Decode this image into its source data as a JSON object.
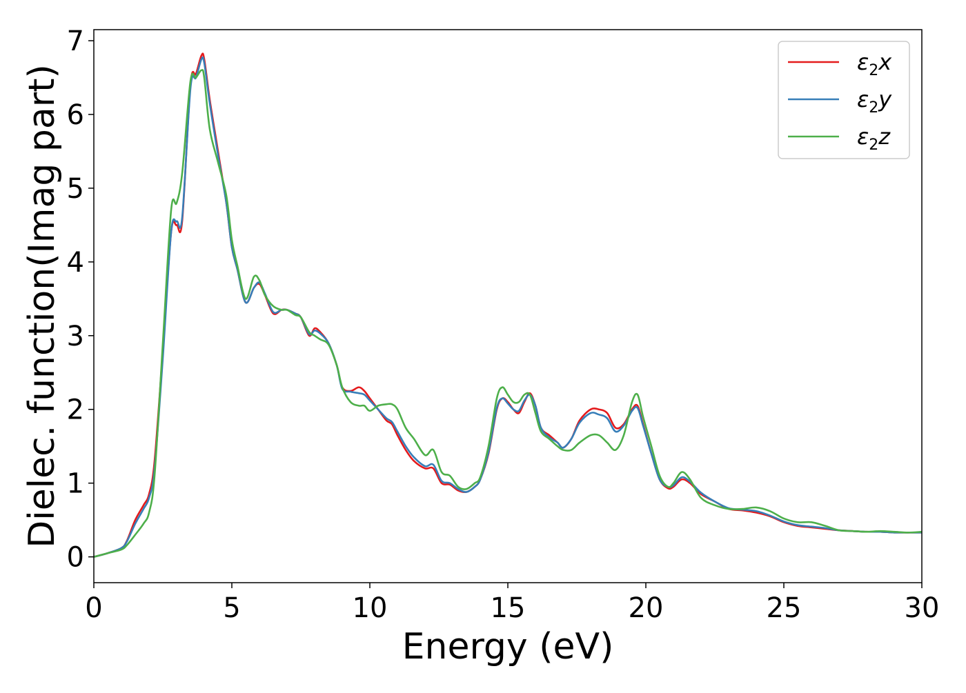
{
  "chart_data": {
    "type": "line",
    "title": "",
    "xlabel": "Energy (eV)",
    "ylabel": "Dielec. function(Imag part)",
    "xlim": [
      0,
      30
    ],
    "ylim": [
      -0.35,
      7.15
    ],
    "xticks": [
      0,
      5,
      10,
      15,
      20,
      25,
      30
    ],
    "yticks": [
      0,
      1,
      2,
      3,
      4,
      5,
      6,
      7
    ],
    "grid": false,
    "legend_position": "top-right",
    "series": [
      {
        "name": "ε₂x",
        "legend": {
          "base": "ε",
          "sub": "2",
          "suffix": "x"
        },
        "color": "#e41a1c",
        "x": [
          0,
          0.5,
          1.0,
          1.2,
          1.5,
          1.8,
          2.0,
          2.2,
          2.5,
          2.8,
          3.0,
          3.2,
          3.5,
          3.7,
          3.9,
          4.0,
          4.2,
          4.5,
          4.8,
          5.0,
          5.2,
          5.5,
          5.8,
          6.0,
          6.2,
          6.5,
          6.8,
          7.0,
          7.3,
          7.5,
          7.8,
          8.0,
          8.2,
          8.5,
          8.8,
          9.0,
          9.3,
          9.6,
          9.8,
          10.0,
          10.3,
          10.6,
          10.8,
          11.0,
          11.3,
          11.6,
          12.0,
          12.3,
          12.6,
          12.9,
          13.2,
          13.5,
          13.8,
          14.0,
          14.3,
          14.6,
          14.8,
          15.0,
          15.2,
          15.4,
          15.6,
          15.8,
          16.0,
          16.2,
          16.5,
          16.8,
          17.0,
          17.3,
          17.6,
          18.0,
          18.3,
          18.6,
          18.9,
          19.2,
          19.5,
          19.7,
          19.9,
          20.2,
          20.5,
          20.8,
          21.0,
          21.3,
          21.6,
          22.0,
          22.5,
          23.0,
          23.5,
          24.0,
          24.5,
          25.0,
          25.5,
          26.0,
          26.5,
          27.0,
          27.5,
          28.0,
          28.5,
          29.0,
          29.5,
          30.0
        ],
        "y": [
          0,
          0.05,
          0.12,
          0.22,
          0.5,
          0.7,
          0.85,
          1.3,
          2.8,
          4.4,
          4.5,
          4.55,
          6.4,
          6.55,
          6.8,
          6.75,
          6.2,
          5.5,
          4.8,
          4.2,
          3.9,
          3.45,
          3.65,
          3.7,
          3.55,
          3.3,
          3.35,
          3.35,
          3.3,
          3.25,
          3.0,
          3.1,
          3.05,
          2.9,
          2.6,
          2.3,
          2.25,
          2.3,
          2.25,
          2.15,
          2.0,
          1.85,
          1.8,
          1.65,
          1.45,
          1.3,
          1.2,
          1.2,
          1.0,
          0.98,
          0.9,
          0.88,
          0.95,
          1.05,
          1.4,
          2.0,
          2.15,
          2.1,
          2.0,
          1.95,
          2.1,
          2.22,
          2.05,
          1.75,
          1.65,
          1.55,
          1.48,
          1.6,
          1.85,
          2.0,
          2.0,
          1.95,
          1.75,
          1.8,
          2.0,
          2.05,
          1.8,
          1.4,
          1.05,
          0.93,
          0.95,
          1.05,
          1.0,
          0.85,
          0.75,
          0.65,
          0.63,
          0.6,
          0.55,
          0.47,
          0.42,
          0.4,
          0.38,
          0.36,
          0.35,
          0.34,
          0.34,
          0.33,
          0.33,
          0.33
        ]
      },
      {
        "name": "ε₂y",
        "legend": {
          "base": "ε",
          "sub": "2",
          "suffix": "y"
        },
        "color": "#377eb8",
        "x": [
          0,
          0.5,
          1.0,
          1.2,
          1.5,
          1.8,
          2.0,
          2.2,
          2.5,
          2.8,
          3.0,
          3.2,
          3.5,
          3.7,
          3.9,
          4.0,
          4.2,
          4.5,
          4.8,
          5.0,
          5.2,
          5.5,
          5.8,
          6.0,
          6.2,
          6.5,
          6.8,
          7.0,
          7.3,
          7.5,
          7.8,
          8.0,
          8.2,
          8.5,
          8.8,
          9.0,
          9.3,
          9.6,
          9.8,
          10.0,
          10.3,
          10.6,
          10.8,
          11.0,
          11.3,
          11.6,
          12.0,
          12.3,
          12.6,
          12.9,
          13.2,
          13.5,
          13.8,
          14.0,
          14.3,
          14.6,
          14.8,
          15.0,
          15.2,
          15.4,
          15.6,
          15.8,
          16.0,
          16.2,
          16.5,
          16.8,
          17.0,
          17.3,
          17.6,
          18.0,
          18.3,
          18.6,
          18.9,
          19.2,
          19.5,
          19.7,
          19.9,
          20.2,
          20.5,
          20.8,
          21.0,
          21.3,
          21.6,
          22.0,
          22.5,
          23.0,
          23.5,
          24.0,
          24.5,
          25.0,
          25.5,
          26.0,
          26.5,
          27.0,
          27.5,
          28.0,
          28.5,
          29.0,
          29.5,
          30.0
        ],
        "y": [
          0,
          0.05,
          0.12,
          0.21,
          0.45,
          0.65,
          0.8,
          1.2,
          2.7,
          4.4,
          4.55,
          4.6,
          6.35,
          6.5,
          6.75,
          6.7,
          6.15,
          5.45,
          4.8,
          4.2,
          3.9,
          3.45,
          3.65,
          3.72,
          3.57,
          3.32,
          3.35,
          3.35,
          3.3,
          3.25,
          3.02,
          3.07,
          3.03,
          2.9,
          2.6,
          2.28,
          2.24,
          2.22,
          2.2,
          2.12,
          2.0,
          1.88,
          1.83,
          1.7,
          1.5,
          1.35,
          1.23,
          1.25,
          1.03,
          1.0,
          0.92,
          0.88,
          0.95,
          1.05,
          1.42,
          2.02,
          2.15,
          2.08,
          2.0,
          1.98,
          2.12,
          2.2,
          2.05,
          1.75,
          1.62,
          1.55,
          1.48,
          1.6,
          1.82,
          1.95,
          1.93,
          1.88,
          1.7,
          1.78,
          1.98,
          2.02,
          1.78,
          1.4,
          1.05,
          0.95,
          0.97,
          1.08,
          1.02,
          0.87,
          0.75,
          0.66,
          0.64,
          0.62,
          0.56,
          0.48,
          0.43,
          0.41,
          0.39,
          0.36,
          0.35,
          0.34,
          0.34,
          0.33,
          0.33,
          0.33
        ]
      },
      {
        "name": "ε₂z",
        "legend": {
          "base": "ε",
          "sub": "2",
          "suffix": "z"
        },
        "color": "#4daf4a",
        "x": [
          0,
          0.5,
          1.0,
          1.2,
          1.5,
          1.8,
          2.0,
          2.2,
          2.5,
          2.8,
          3.0,
          3.2,
          3.5,
          3.7,
          3.9,
          4.0,
          4.2,
          4.5,
          4.8,
          5.0,
          5.2,
          5.5,
          5.8,
          6.0,
          6.2,
          6.5,
          6.8,
          7.0,
          7.3,
          7.5,
          7.8,
          8.0,
          8.2,
          8.5,
          8.8,
          9.0,
          9.3,
          9.6,
          9.8,
          10.0,
          10.3,
          10.6,
          10.8,
          11.0,
          11.3,
          11.6,
          12.0,
          12.3,
          12.6,
          12.9,
          13.2,
          13.5,
          13.8,
          14.0,
          14.3,
          14.6,
          14.8,
          15.0,
          15.2,
          15.4,
          15.6,
          15.8,
          16.0,
          16.2,
          16.5,
          16.8,
          17.0,
          17.3,
          17.6,
          18.0,
          18.3,
          18.6,
          18.9,
          19.2,
          19.5,
          19.7,
          19.9,
          20.2,
          20.5,
          20.8,
          21.0,
          21.3,
          21.6,
          22.0,
          22.5,
          23.0,
          23.5,
          24.0,
          24.5,
          25.0,
          25.5,
          26.0,
          26.5,
          27.0,
          27.5,
          28.0,
          28.5,
          29.0,
          29.5,
          30.0
        ],
        "y": [
          0,
          0.05,
          0.1,
          0.16,
          0.3,
          0.45,
          0.6,
          1.1,
          2.9,
          4.7,
          4.8,
          5.2,
          6.45,
          6.5,
          6.6,
          6.5,
          5.8,
          5.35,
          4.9,
          4.3,
          3.95,
          3.5,
          3.8,
          3.75,
          3.55,
          3.4,
          3.35,
          3.35,
          3.28,
          3.25,
          3.05,
          3.0,
          2.95,
          2.88,
          2.6,
          2.3,
          2.1,
          2.05,
          2.05,
          1.98,
          2.05,
          2.07,
          2.07,
          2.0,
          1.75,
          1.6,
          1.38,
          1.45,
          1.15,
          1.1,
          0.95,
          0.92,
          1.0,
          1.08,
          1.5,
          2.15,
          2.3,
          2.2,
          2.1,
          2.1,
          2.2,
          2.2,
          1.95,
          1.7,
          1.6,
          1.5,
          1.45,
          1.45,
          1.55,
          1.65,
          1.65,
          1.55,
          1.45,
          1.65,
          2.1,
          2.2,
          1.9,
          1.5,
          1.1,
          0.95,
          1.0,
          1.15,
          1.05,
          0.8,
          0.7,
          0.65,
          0.65,
          0.67,
          0.62,
          0.52,
          0.47,
          0.47,
          0.42,
          0.36,
          0.35,
          0.34,
          0.35,
          0.34,
          0.33,
          0.34
        ]
      }
    ]
  }
}
